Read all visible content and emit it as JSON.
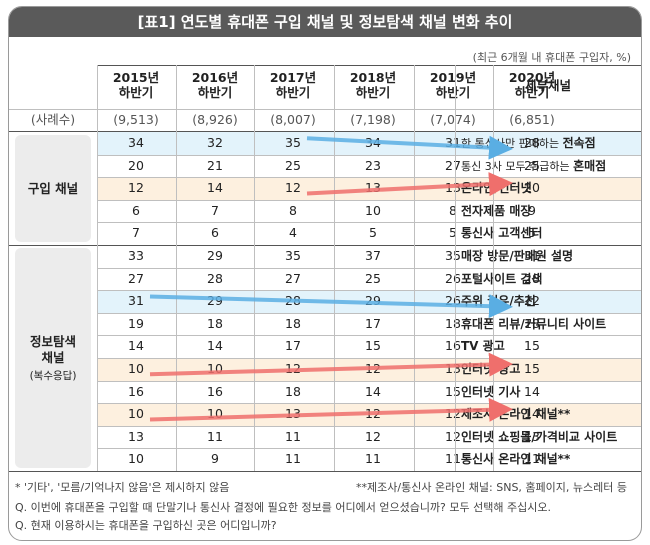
{
  "title": "[표1] 연도별 휴대폰 구입 채널 및 정보탐색 채널 변화 추이",
  "unit_note": "(최근 6개월 내 휴대폰 구입자, %)",
  "header": {
    "years": [
      "2015년 하반기",
      "2016년 하반기",
      "2017년 하반기",
      "2018년 하반기",
      "2019년 하반기",
      "2020년 하반기"
    ],
    "detail_col": "세부채널"
  },
  "sample_row": {
    "label": "(사례수)",
    "values": [
      "(9,513)",
      "(8,926)",
      "(8,007)",
      "(7,198)",
      "(7,074)",
      "(6,851)"
    ]
  },
  "groups": [
    {
      "label": "구입 채널",
      "sub": ""
    },
    {
      "label": "정보탐색 채널",
      "sub": "(복수응답)"
    }
  ],
  "chart_data": {
    "type": "table",
    "columns": [
      "2015년 하반기",
      "2016년 하반기",
      "2017년 하반기",
      "2018년 하반기",
      "2019년 하반기",
      "2020년 하반기"
    ],
    "rows": [
      {
        "group": "구입 채널",
        "label_pre": "한 통신사만 판매하는 ",
        "label_bold": "전속점",
        "values": [
          34,
          32,
          35,
          34,
          31,
          28
        ],
        "highlight": "blue",
        "arrow": {
          "color": "#5aaee3",
          "from": 2,
          "to": 5,
          "direction": "down"
        }
      },
      {
        "group": "구입 채널",
        "label_pre": "통신 3사 모두 취급하는 ",
        "label_bold": "혼매점",
        "values": [
          20,
          21,
          25,
          23,
          27,
          25
        ],
        "highlight": null
      },
      {
        "group": "구입 채널",
        "label_pre": "",
        "label_bold": "온라인/인터넷",
        "values": [
          12,
          14,
          12,
          13,
          13,
          20
        ],
        "highlight": "orange",
        "arrow": {
          "color": "#ef6f6c",
          "from": 2,
          "to": 5,
          "direction": "up"
        }
      },
      {
        "group": "구입 채널",
        "label_pre": "",
        "label_bold": "전자제품 매장",
        "values": [
          6,
          7,
          8,
          10,
          8,
          9
        ],
        "highlight": null
      },
      {
        "group": "구입 채널",
        "label_pre": "",
        "label_bold": "통신사 고객센터",
        "values": [
          7,
          6,
          4,
          5,
          5,
          5
        ],
        "highlight": null
      },
      {
        "group": "정보탐색 채널",
        "label_pre": "",
        "label_bold": "매장 방문/판매원 설명",
        "values": [
          33,
          29,
          35,
          37,
          35,
          31
        ],
        "highlight": null
      },
      {
        "group": "정보탐색 채널",
        "label_pre": "",
        "label_bold": "포털사이트 검색",
        "values": [
          27,
          28,
          27,
          25,
          26,
          28
        ],
        "highlight": null
      },
      {
        "group": "정보탐색 채널",
        "label_pre": "",
        "label_bold": "주위 권유/추천",
        "values": [
          31,
          29,
          28,
          29,
          26,
          22
        ],
        "highlight": "blue",
        "arrow": {
          "color": "#5aaee3",
          "from": 0,
          "to": 5,
          "direction": "down"
        }
      },
      {
        "group": "정보탐색 채널",
        "label_pre": "",
        "label_bold": "휴대폰 리뷰/커뮤니티 사이트",
        "values": [
          19,
          18,
          18,
          17,
          18,
          18
        ],
        "highlight": null
      },
      {
        "group": "정보탐색 채널",
        "label_pre": "",
        "label_bold": "TV 광고",
        "values": [
          14,
          14,
          17,
          15,
          16,
          15
        ],
        "highlight": null
      },
      {
        "group": "정보탐색 채널",
        "label_pre": "",
        "label_bold": "인터넷 광고",
        "values": [
          10,
          10,
          12,
          12,
          13,
          15
        ],
        "highlight": "orange",
        "arrow": {
          "color": "#ef6f6c",
          "from": 0,
          "to": 5,
          "direction": "up"
        }
      },
      {
        "group": "정보탐색 채널",
        "label_pre": "",
        "label_bold": "인터넷 기사",
        "values": [
          16,
          16,
          18,
          14,
          15,
          14
        ],
        "highlight": null
      },
      {
        "group": "정보탐색 채널",
        "label_pre": "",
        "label_bold": "제조사 온라인 채널**",
        "values": [
          10,
          10,
          13,
          12,
          12,
          14
        ],
        "highlight": "orange",
        "arrow": {
          "color": "#ef6f6c",
          "from": 0,
          "to": 5,
          "direction": "up"
        }
      },
      {
        "group": "정보탐색 채널",
        "label_pre": "",
        "label_bold": "인터넷 쇼핑몰/가격비교 사이트",
        "values": [
          13,
          11,
          11,
          12,
          12,
          13
        ],
        "highlight": null
      },
      {
        "group": "정보탐색 채널",
        "label_pre": "",
        "label_bold": "통신사 온라인 채널**",
        "values": [
          10,
          9,
          11,
          11,
          11,
          11
        ],
        "highlight": null
      }
    ]
  },
  "footnotes": {
    "left": "* '기타', '모름/기억나지 않음'은 제시하지 않음",
    "right": "**제조사/통신사 온라인 채널: SNS, 홈페이지, 뉴스레터 등",
    "q1": "Q. 이번에 휴대폰을 구입할 때 단말기나 통신사 결정에 필요한 정보를 어디에서 얻으셨습니까? 모두 선택해 주십시오.",
    "q2": "Q. 현재 이용하시는 휴대폰을 구입하신 곳은 어디입니까?"
  },
  "colors": {
    "title_bg": "#5a5a5a",
    "blue_highlight": "#e3f3fb",
    "orange_highlight": "#fdf0df",
    "blue_arrow": "#5aaee3",
    "red_arrow": "#ef6f6c"
  }
}
